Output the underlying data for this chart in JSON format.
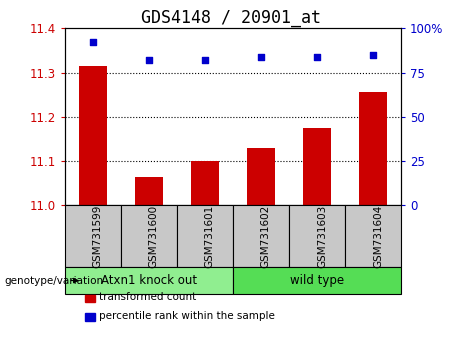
{
  "title": "GDS4148 / 20901_at",
  "samples": [
    "GSM731599",
    "GSM731600",
    "GSM731601",
    "GSM731602",
    "GSM731603",
    "GSM731604"
  ],
  "bar_values": [
    11.315,
    11.065,
    11.1,
    11.13,
    11.175,
    11.255
  ],
  "percentile_values": [
    92,
    82,
    82,
    84,
    84,
    85
  ],
  "bar_color": "#cc0000",
  "dot_color": "#0000cc",
  "ylim_left": [
    11.0,
    11.4
  ],
  "ylim_right": [
    0,
    100
  ],
  "yticks_left": [
    11.0,
    11.1,
    11.2,
    11.3,
    11.4
  ],
  "yticks_right": [
    0,
    25,
    50,
    75,
    100
  ],
  "grid_values": [
    11.1,
    11.2,
    11.3
  ],
  "groups": [
    {
      "label": "Atxn1 knock out",
      "color": "#90ee90",
      "indices": [
        0,
        1,
        2
      ]
    },
    {
      "label": "wild type",
      "color": "#55dd55",
      "indices": [
        3,
        4,
        5
      ]
    }
  ],
  "genotype_label": "genotype/variation",
  "legend_items": [
    {
      "label": "transformed count",
      "color": "#cc0000"
    },
    {
      "label": "percentile rank within the sample",
      "color": "#0000cc"
    }
  ],
  "bar_width": 0.5,
  "background_color": "#ffffff",
  "plot_bg_color": "#ffffff",
  "tick_label_color_left": "#cc0000",
  "tick_label_color_right": "#0000cc",
  "title_fontsize": 12,
  "axis_fontsize": 8.5,
  "gray_color": "#c8c8c8",
  "xlim": [
    -0.5,
    5.5
  ]
}
